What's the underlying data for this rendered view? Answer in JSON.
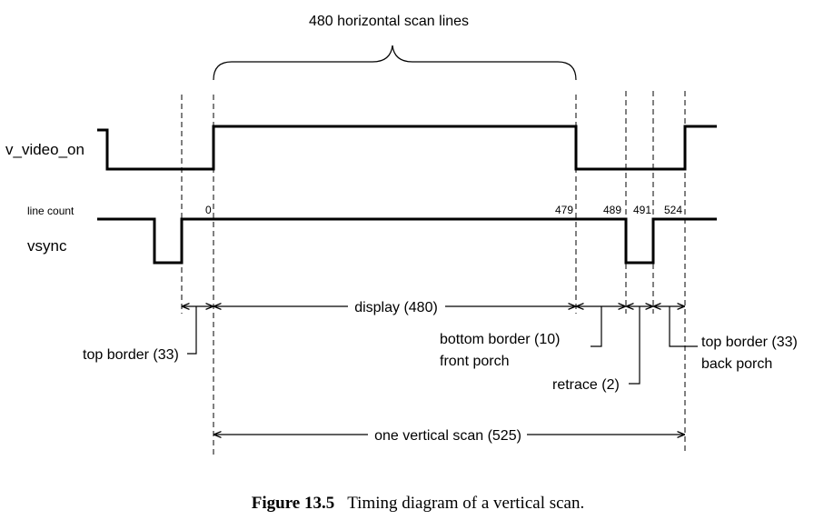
{
  "diagram": {
    "brace_label": "480 horizontal scan lines",
    "signals": {
      "video_on": "v_video_on",
      "line_count": "line count",
      "vsync": "vsync"
    },
    "counts": {
      "c0": "0",
      "c479": "479",
      "c489": "489",
      "c491": "491",
      "c524": "524"
    },
    "spans": {
      "display": "display (480)",
      "top_border": "top border (33)",
      "bottom_border": "bottom border (10)",
      "front_porch": "front porch",
      "retrace": "retrace (2)",
      "top_border_back": "top border (33)",
      "back_porch": "back porch",
      "vertical_scan": "one vertical scan (525)"
    }
  },
  "caption": {
    "figure": "Figure 13.5",
    "text": "Timing diagram of a vertical scan."
  }
}
